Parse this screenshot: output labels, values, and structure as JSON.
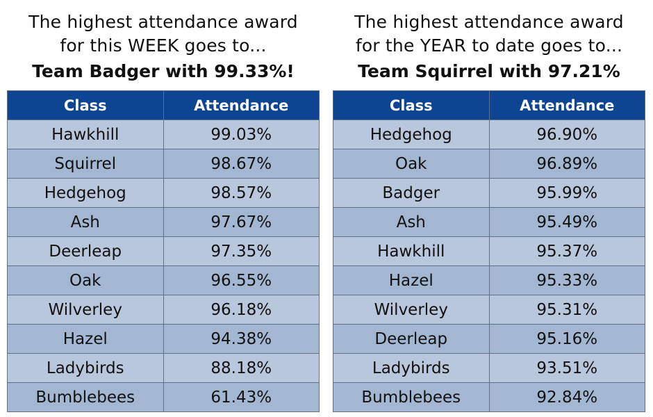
{
  "week": {
    "heading_line1": "The highest attendance award",
    "heading_line2": "for this WEEK goes to...",
    "winner": "Team Badger with 99.33%!",
    "columns": [
      "Class",
      "Attendance"
    ],
    "rows": [
      {
        "class": "Hawkhill",
        "attendance": "99.03%"
      },
      {
        "class": "Squirrel",
        "attendance": "98.67%"
      },
      {
        "class": "Hedgehog",
        "attendance": "98.57%"
      },
      {
        "class": "Ash",
        "attendance": "97.67%"
      },
      {
        "class": "Deerleap",
        "attendance": "97.35%"
      },
      {
        "class": "Oak",
        "attendance": "96.55%"
      },
      {
        "class": "Wilverley",
        "attendance": "96.18%"
      },
      {
        "class": "Hazel",
        "attendance": "94.38%"
      },
      {
        "class": "Ladybirds",
        "attendance": "88.18%"
      },
      {
        "class": "Bumblebees",
        "attendance": "61.43%"
      }
    ]
  },
  "year": {
    "heading_line1": "The highest attendance award",
    "heading_line2": "for the YEAR to date goes to...",
    "winner": "Team Squirrel with 97.21%",
    "columns": [
      "Class",
      "Attendance"
    ],
    "rows": [
      {
        "class": "Hedgehog",
        "attendance": "96.90%"
      },
      {
        "class": "Oak",
        "attendance": "96.89%"
      },
      {
        "class": "Badger",
        "attendance": "95.99%"
      },
      {
        "class": "Ash",
        "attendance": "95.49%"
      },
      {
        "class": "Hawkhill",
        "attendance": "95.37%"
      },
      {
        "class": "Hazel",
        "attendance": "95.33%"
      },
      {
        "class": "Wilverley",
        "attendance": "95.31%"
      },
      {
        "class": "Deerleap",
        "attendance": "95.16%"
      },
      {
        "class": "Ladybirds",
        "attendance": "93.51%"
      },
      {
        "class": "Bumblebees",
        "attendance": "92.84%"
      }
    ]
  },
  "colors": {
    "header_bg": "#0e4592",
    "row_light": "#b8c7db",
    "row_dark": "#a3b7d3"
  }
}
